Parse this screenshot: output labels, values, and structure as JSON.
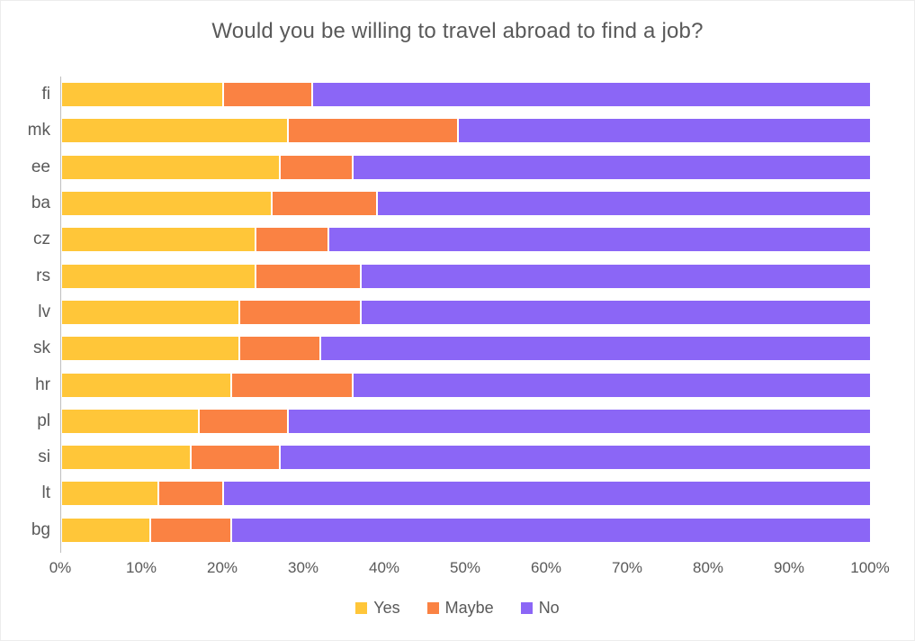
{
  "title": "Would you be willing to travel abroad to find a job?",
  "chart_data": {
    "type": "bar",
    "orientation": "horizontal",
    "stacked": true,
    "stacked_total": 100,
    "title": "Would you be willing to travel abroad to find a job?",
    "xlabel": "",
    "ylabel": "",
    "xlim": [
      0,
      100
    ],
    "grid": false,
    "legend_position": "bottom",
    "categories": [
      "fi",
      "mk",
      "ee",
      "ba",
      "cz",
      "rs",
      "lv",
      "sk",
      "hr",
      "pl",
      "si",
      "lt",
      "bg"
    ],
    "series": [
      {
        "name": "Yes",
        "color": "#FFC639",
        "values": [
          20,
          28,
          27,
          26,
          24,
          24,
          22,
          22,
          21,
          17,
          16,
          12,
          11
        ]
      },
      {
        "name": "Maybe",
        "color": "#FA8243",
        "values": [
          11,
          21,
          9,
          13,
          9,
          13,
          15,
          10,
          15,
          11,
          11,
          8,
          10
        ]
      },
      {
        "name": "No",
        "color": "#8B66F6",
        "values": [
          69,
          51,
          64,
          61,
          67,
          63,
          63,
          68,
          64,
          72,
          73,
          80,
          79
        ]
      }
    ],
    "x_ticks": [
      "0%",
      "10%",
      "20%",
      "30%",
      "40%",
      "50%",
      "60%",
      "70%",
      "80%",
      "90%",
      "100%"
    ],
    "text_color": "#595959",
    "axis_line_color": "#bfbfbf"
  }
}
